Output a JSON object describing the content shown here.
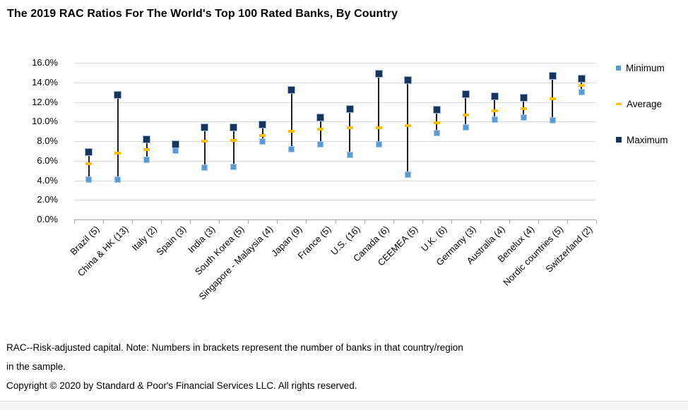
{
  "page": {
    "title": "The 2019 RAC Ratios For The World's Top 100 Rated Banks, By Country",
    "footnote_line1": "RAC--Risk-adjusted capital. Note: Numbers in brackets represent the number of banks in that country/region",
    "footnote_line2": "in the sample.",
    "footnote_line3": "Copyright © 2020 by Standard & Poor's Financial Services LLC. All rights reserved."
  },
  "legend": {
    "position": "right",
    "items": [
      {
        "label": "Minimum",
        "color": "#5B9BD5",
        "marker": "small-square"
      },
      {
        "label": "Average",
        "color": "#FFC000",
        "marker": "dash"
      },
      {
        "label": "Maximum",
        "color": "#17365D",
        "marker": "square"
      }
    ]
  },
  "colors": {
    "minimum": "#5B9BD5",
    "average": "#FFC000",
    "maximum": "#17365D",
    "range_line": "#1F1F1F",
    "gridline": "#D9D9D9",
    "axis": "#A6A6A6"
  },
  "chart_data": {
    "type": "scatter",
    "subtype": "min-average-max range plot",
    "title": "The 2019 RAC Ratios For The World's Top 100 Rated Banks, By Country",
    "xlabel": "",
    "ylabel": "",
    "ylim": [
      0,
      16
    ],
    "y_tick_step": 2,
    "y_tick_labels": [
      "0.0%",
      "2.0%",
      "4.0%",
      "6.0%",
      "8.0%",
      "10.0%",
      "12.0%",
      "14.0%",
      "16.0%"
    ],
    "grid": true,
    "legend_position": "right",
    "categories": [
      "Brazil (5)",
      "China & HK (13)",
      "Italy (2)",
      "Spain (3)",
      "India (3)",
      "South Korea (5)",
      "Singapore - Malaysia (4)",
      "Japan (9)",
      "France (5)",
      "U.S. (16)",
      "Canada (6)",
      "CEEMEA (5)",
      "U.K. (6)",
      "Germany (3)",
      "Australia (4)",
      "Benelux (4)",
      "Nordic countries (5)",
      "Switzerland (2)"
    ],
    "series": [
      {
        "name": "Minimum",
        "color": "#5B9BD5",
        "values": [
          4.1,
          4.1,
          6.1,
          7.0,
          5.3,
          5.4,
          8.0,
          7.2,
          7.7,
          6.6,
          7.7,
          4.6,
          8.8,
          9.4,
          10.2,
          10.4,
          10.1,
          13.0
        ]
      },
      {
        "name": "Average",
        "color": "#FFC000",
        "values": [
          5.7,
          6.8,
          7.1,
          7.4,
          8.0,
          8.1,
          8.6,
          9.0,
          9.2,
          9.4,
          9.4,
          9.6,
          9.9,
          10.7,
          11.1,
          11.3,
          12.3,
          13.7
        ]
      },
      {
        "name": "Maximum",
        "color": "#17365D",
        "values": [
          6.9,
          12.7,
          8.2,
          7.7,
          9.4,
          9.4,
          9.7,
          13.2,
          10.4,
          11.3,
          14.9,
          14.2,
          11.2,
          12.8,
          12.6,
          12.4,
          14.7,
          14.4
        ]
      }
    ]
  }
}
